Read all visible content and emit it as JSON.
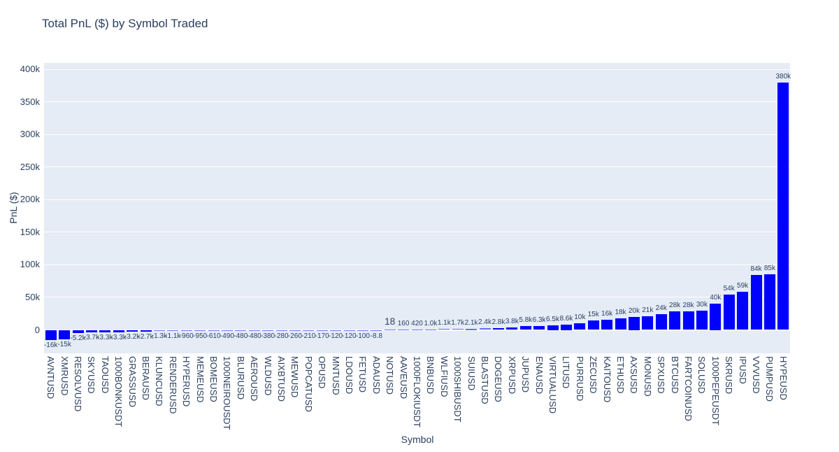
{
  "chart_data": {
    "type": "bar",
    "title": "Total PnL ($) by Symbol Traded",
    "xlabel": "Symbol",
    "ylabel": "PnL ($)",
    "ylim": [
      -36000,
      410000
    ],
    "grid": true,
    "legend": false,
    "colors": {
      "bar": "#0000ff",
      "plot_background": "#e5ecf6",
      "gridline": "#ffffff",
      "text": "#2a3f5f"
    },
    "yticks": {
      "values": [
        0,
        50000,
        100000,
        150000,
        200000,
        250000,
        300000,
        350000,
        400000
      ],
      "labels": [
        "0",
        "50k",
        "100k",
        "150k",
        "200k",
        "250k",
        "300k",
        "350k",
        "400k"
      ]
    },
    "categories": [
      "AVNTUSD",
      "XMRUSD",
      "RESOLVUSD",
      "SKYUSD",
      "TAOUSD",
      "1000BONKUSDT",
      "GRASSUSD",
      "BERAUSD",
      "KLUNCUSD",
      "RENDERUSD",
      "HYPERUSD",
      "MEMEUSD",
      "BOMEUSD",
      "1000NEIROUSDT",
      "BLURUSD",
      "AEROUSD",
      "WLDUSD",
      "AIXBTUSD",
      "MEWUSD",
      "POPCATUSD",
      "OPUSD",
      "MNTUSD",
      "LDOUSD",
      "FETUSD",
      "ADAUSD",
      "NOTUSD",
      "AAVEUSD",
      "1000FLOKIUSDT",
      "BNBUSD",
      "WLFIUSD",
      "1000SHIBUSDT",
      "SUIUSD",
      "BLASTUSD",
      "DOGEUSD",
      "XRPUSD",
      "JUPUSD",
      "ENAUSD",
      "VIRTUALUSD",
      "LITUSD",
      "PURRUSD",
      "ZECUSD",
      "KAITOUSD",
      "ETHUSD",
      "AXSUSD",
      "MONUSD",
      "SPXUSD",
      "BTCUSD",
      "FARTCOINUSD",
      "SOLUSD",
      "1000PEPEUSDT",
      "SKRUSD",
      "IPUSD",
      "VVVUSD",
      "PUMPUSD",
      "HYPEUSD"
    ],
    "values": [
      -16000,
      -15000,
      -5200,
      -3700,
      -3300,
      -3300,
      -3200,
      -2700,
      -1300,
      -1100,
      -960,
      -950,
      -610,
      -490,
      -480,
      -480,
      -380,
      -280,
      -260,
      -210,
      -170,
      -120,
      -120,
      -100,
      -8.8,
      18,
      160,
      420,
      1000,
      1100,
      1700,
      2100,
      2400,
      2800,
      3800,
      5800,
      6300,
      6500,
      8600,
      10000,
      15000,
      16000,
      18000,
      20000,
      21000,
      24000,
      28000,
      28000,
      30000,
      40000,
      54000,
      59000,
      84000,
      85000,
      380000
    ],
    "value_labels": [
      "-16k",
      "-15k",
      "-5.2k",
      "-3.7k",
      "-3.3k",
      "-3.3k",
      "-3.2k",
      "-2.7k",
      "-1.3k",
      "-1.1k",
      "-960",
      "-950",
      "-610",
      "-490",
      "-480",
      "-480",
      "-380",
      "-280",
      "-260",
      "-210",
      "-170",
      "-120",
      "-120",
      "-100",
      "-8.8",
      "18",
      "160",
      "420",
      "1.0k",
      "1.1k",
      "1.7k",
      "2.1k",
      "2.4k",
      "2.8k",
      "3.8k",
      "5.8k",
      "6.3k",
      "6.5k",
      "8.6k",
      "10k",
      "15k",
      "16k",
      "18k",
      "20k",
      "21k",
      "24k",
      "28k",
      "28k",
      "30k",
      "40k",
      "54k",
      "59k",
      "84k",
      "85k",
      "380k"
    ]
  }
}
